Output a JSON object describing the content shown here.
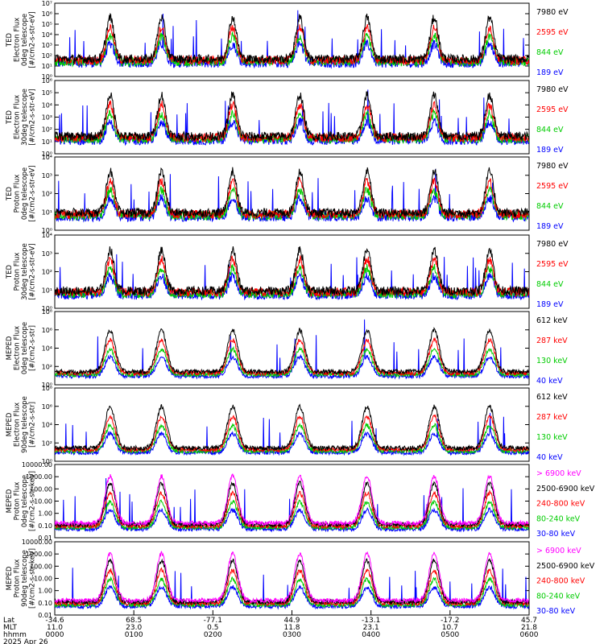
{
  "chart_data": {
    "type": "line",
    "panels": [
      {
        "ylabel": [
          "TED",
          "Electron Flux",
          "0deg telescope",
          "[#/cm2-s-str-eV]"
        ],
        "scale": "log",
        "ytick_labels": [
          "10⁰",
          "10¹",
          "10²",
          "10³",
          "10⁴",
          "10⁵",
          "10⁶",
          "10⁷"
        ],
        "ylim": [
          0,
          7
        ],
        "series": [
          {
            "name": "7980 eV",
            "color": "#000000"
          },
          {
            "name": "2595 eV",
            "color": "#ff0000"
          },
          {
            "name": "844 eV",
            "color": "#00cc00"
          },
          {
            "name": "189 eV",
            "color": "#0000ff"
          }
        ]
      },
      {
        "ylabel": [
          "TED",
          "Electron Flux",
          "30deg telescope",
          "[#/cm2-s-str-eV]"
        ],
        "scale": "log",
        "ytick_labels": [
          "10⁰",
          "10¹",
          "10²",
          "10³",
          "10⁴",
          "10⁵",
          "10⁶"
        ],
        "ylim": [
          0,
          6
        ],
        "series": [
          {
            "name": "7980 eV",
            "color": "#000000"
          },
          {
            "name": "2595 eV",
            "color": "#ff0000"
          },
          {
            "name": "844 eV",
            "color": "#00cc00"
          },
          {
            "name": "189 eV",
            "color": "#0000ff"
          }
        ]
      },
      {
        "ylabel": [
          "TED",
          "Proton Flux",
          "0deg telescope",
          "[#/cm2-s-str-eV]"
        ],
        "scale": "log",
        "ytick_labels": [
          "10⁰",
          "10¹",
          "10²",
          "10³",
          "10⁴"
        ],
        "ylim": [
          0,
          4.5
        ],
        "series": [
          {
            "name": "7980 eV",
            "color": "#000000"
          },
          {
            "name": "2595 eV",
            "color": "#ff0000"
          },
          {
            "name": "844 eV",
            "color": "#00cc00"
          },
          {
            "name": "189 eV",
            "color": "#0000ff"
          }
        ]
      },
      {
        "ylabel": [
          "TED",
          "Proton Flux",
          "30deg telescope",
          "[#/cm2-s-str-eV]"
        ],
        "scale": "log",
        "ytick_labels": [
          "10⁰",
          "10¹",
          "10²",
          "10³",
          "10⁴"
        ],
        "ylim": [
          0,
          4.5
        ],
        "series": [
          {
            "name": "7980 eV",
            "color": "#000000"
          },
          {
            "name": "2595 eV",
            "color": "#ff0000"
          },
          {
            "name": "844 eV",
            "color": "#00cc00"
          },
          {
            "name": "189 eV",
            "color": "#0000ff"
          }
        ]
      },
      {
        "ylabel": [
          "MEPED",
          "Electron Flux",
          "0deg telescope",
          "[#/cm2-s-str]"
        ],
        "scale": "log",
        "ytick_labels": [
          "10⁰",
          "10²",
          "10⁴",
          "10⁶",
          "10⁸"
        ],
        "ylim": [
          0,
          8
        ],
        "series": [
          {
            "name": "612 keV",
            "color": "#000000"
          },
          {
            "name": "287 keV",
            "color": "#ff0000"
          },
          {
            "name": "130 keV",
            "color": "#00cc00"
          },
          {
            "name": "40 keV",
            "color": "#0000ff"
          }
        ]
      },
      {
        "ylabel": [
          "MEPED",
          "Electron Flux",
          "90deg telescope",
          "[#/cm2-s-str]"
        ],
        "scale": "log",
        "ytick_labels": [
          "10⁰",
          "10²",
          "10⁴",
          "10⁶",
          "10⁸"
        ],
        "ylim": [
          0,
          8
        ],
        "series": [
          {
            "name": "612 keV",
            "color": "#000000"
          },
          {
            "name": "287 keV",
            "color": "#ff0000"
          },
          {
            "name": "130 keV",
            "color": "#00cc00"
          },
          {
            "name": "40 keV",
            "color": "#0000ff"
          }
        ]
      },
      {
        "ylabel": [
          "MEPED",
          "Proton Flux",
          "0deg telescope",
          "[#/cm2-s-str-keV]"
        ],
        "scale": "log",
        "ytick_labels": [
          "0.01",
          "0.10",
          "1.00",
          "10.00",
          "100.00",
          "1000.00",
          "10000.00"
        ],
        "ylim": [
          -2,
          4.2
        ],
        "series": [
          {
            "name": "> 6900 keV",
            "color": "#ff00ff"
          },
          {
            "name": "2500-6900 keV",
            "color": "#000000"
          },
          {
            "name": "240-800 keV",
            "color": "#ff0000"
          },
          {
            "name": "80-240 keV",
            "color": "#00cc00"
          },
          {
            "name": "30-80 keV",
            "color": "#0000ff"
          }
        ]
      },
      {
        "ylabel": [
          "MEPED",
          "Proton Flux",
          "90deg telescope",
          "[#/cm2-s-str-keV]"
        ],
        "scale": "log",
        "ytick_labels": [
          "0.01",
          "0.10",
          "1.00",
          "10.00",
          "100.00",
          "1000.00",
          "10000.00"
        ],
        "ylim": [
          -2,
          4.2
        ],
        "series": [
          {
            "name": "> 6900 keV",
            "color": "#ff00ff"
          },
          {
            "name": "2500-6900 keV",
            "color": "#000000"
          },
          {
            "name": "240-800 keV",
            "color": "#ff0000"
          },
          {
            "name": "80-240 keV",
            "color": "#00cc00"
          },
          {
            "name": "30-80 keV",
            "color": "#0000ff"
          }
        ]
      }
    ],
    "x_axis": {
      "row_labels": [
        "Lat",
        "MLT",
        "hhmm"
      ],
      "ticks": [
        {
          "lat": "-34.6",
          "mlt": "11.0",
          "hhmm": "0000"
        },
        {
          "lat": "68.5",
          "mlt": "23.0",
          "hhmm": "0100"
        },
        {
          "lat": "-77.1",
          "mlt": "0.5",
          "hhmm": "0200"
        },
        {
          "lat": "44.9",
          "mlt": "11.8",
          "hhmm": "0300"
        },
        {
          "lat": "-13.1",
          "mlt": "23.1",
          "hhmm": "0400"
        },
        {
          "lat": "-17.2",
          "mlt": "10.7",
          "hhmm": "0500"
        },
        {
          "lat": "45.7",
          "mlt": "21.8",
          "hhmm": "0600"
        }
      ],
      "date": "2025 Apr 26",
      "xlim_hours": [
        0,
        6
      ]
    },
    "passes_hours": [
      0.7,
      1.35,
      2.25,
      3.1,
      3.95,
      4.8,
      5.5
    ]
  }
}
